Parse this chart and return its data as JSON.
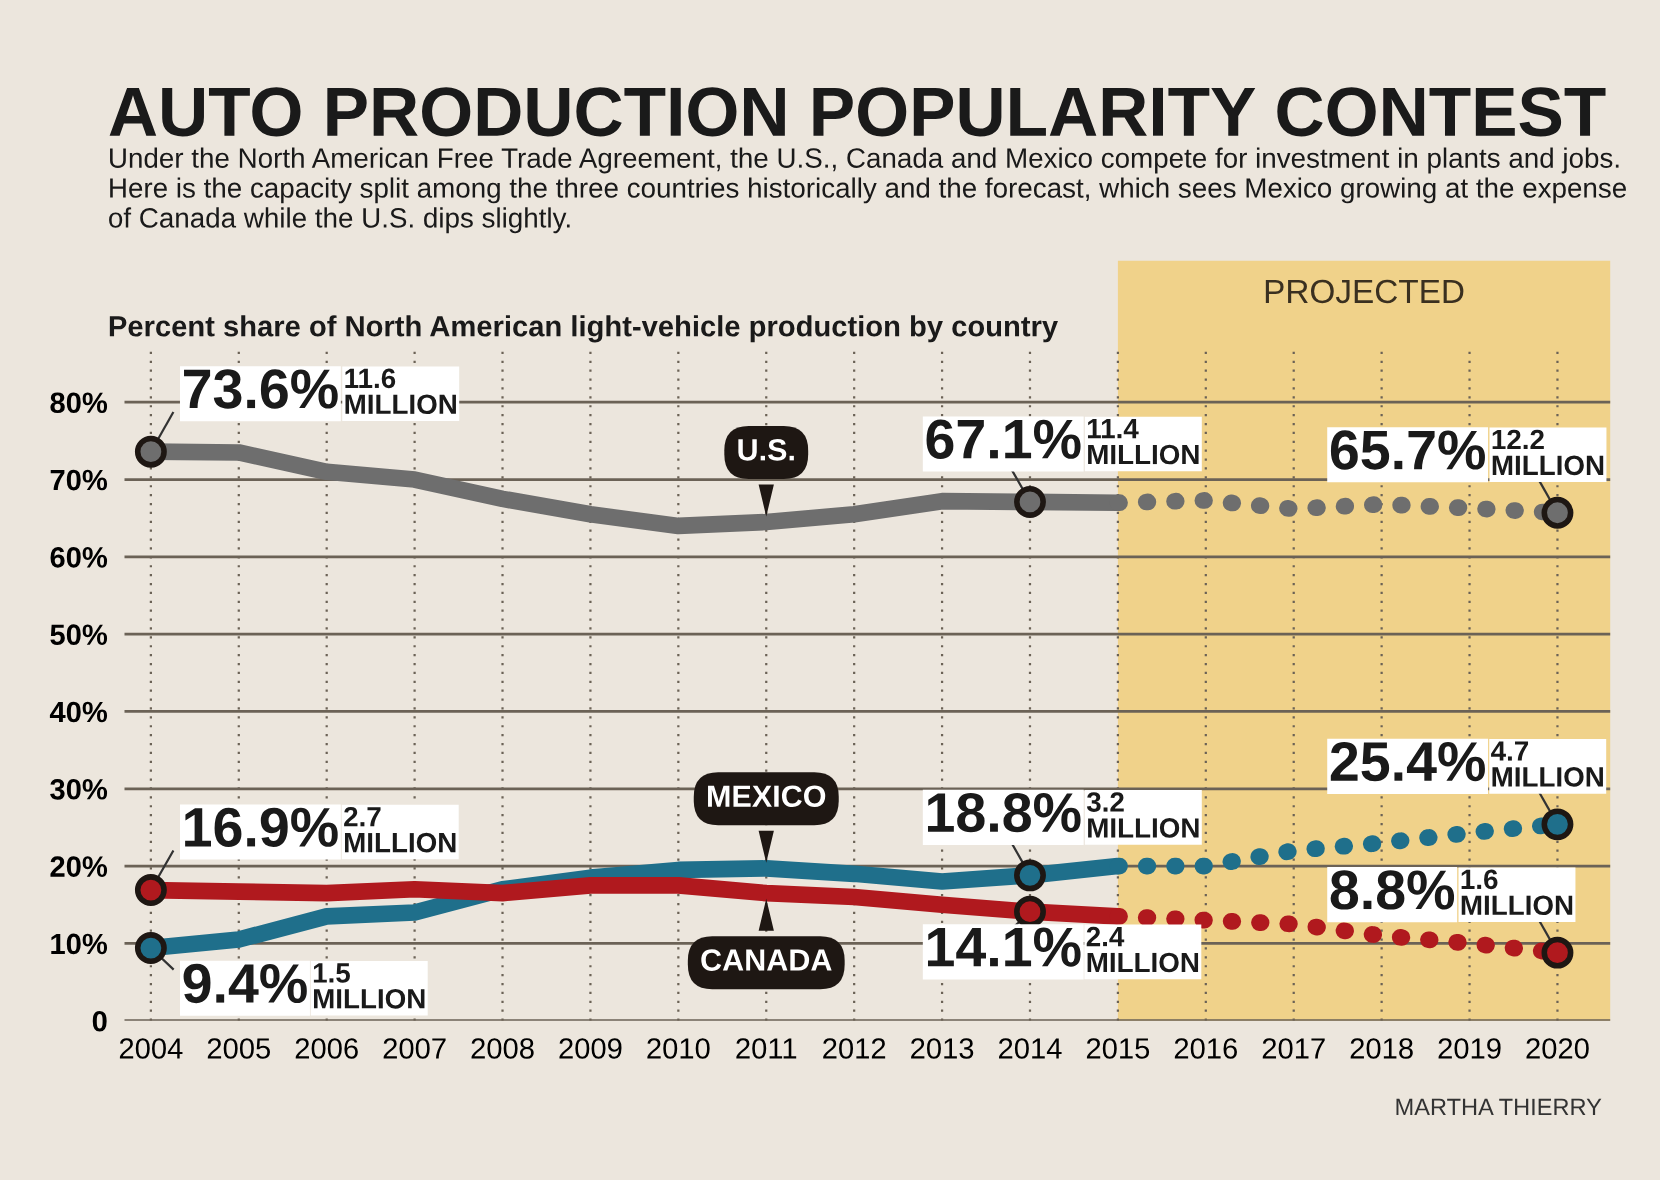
{
  "chart_data": {
    "type": "line",
    "title": "AUTO PRODUCTION POPULARITY CONTEST",
    "subtitle": "Under the North American Free Trade Agreement, the U.S., Canada and Mexico compete for investment in plants and jobs.  Here is the capacity split among the three countries historically and the forecast, which sees Mexico growing at the expense of Canada while the U.S. dips slightly.",
    "ylabel": "Percent share of North American light-vehicle production by country",
    "x": [
      2004,
      2005,
      2006,
      2007,
      2008,
      2009,
      2010,
      2011,
      2012,
      2013,
      2014,
      2015
    ],
    "series": [
      {
        "name": "U.S.",
        "color": "#6e6e6e",
        "line_style": "solid",
        "values": [
          73.6,
          73.5,
          71,
          70,
          67.5,
          65.5,
          64,
          64.5,
          65.5,
          67.2,
          67.1,
          67
        ]
      },
      {
        "color": "#6e6e6e",
        "line_style": "dotted",
        "x": [
          2015,
          2016,
          2017,
          2018,
          2019,
          2020
        ],
        "values": [
          67,
          67.3,
          66.2,
          66.8,
          66.3,
          65.7
        ]
      },
      {
        "name": "MEXICO",
        "color": "#1f6f8b",
        "line_style": "solid",
        "values": [
          9.4,
          10.5,
          13.5,
          14,
          17,
          18.5,
          19.5,
          19.7,
          19,
          18,
          18.8,
          20
        ]
      },
      {
        "color": "#1f6f8b",
        "line_style": "dotted",
        "x": [
          2015,
          2016,
          2017,
          2018,
          2019,
          2020
        ],
        "values": [
          20,
          20,
          22,
          23,
          24.3,
          25.4
        ]
      },
      {
        "name": "CANADA",
        "color": "#b0191e",
        "line_style": "solid",
        "values": [
          16.9,
          16.7,
          16.5,
          17,
          16.5,
          17.5,
          17.5,
          16.5,
          16,
          15,
          14.1,
          13.5
        ]
      },
      {
        "color": "#b0191e",
        "line_style": "dotted",
        "x": [
          2015,
          2016,
          2017,
          2018,
          2019,
          2020
        ],
        "values": [
          13.5,
          13,
          12.5,
          11,
          10,
          8.8
        ]
      }
    ],
    "xlim": [
      2003.7,
      2020.6
    ],
    "xticks": [
      2004,
      2005,
      2006,
      2007,
      2008,
      2009,
      2010,
      2011,
      2012,
      2013,
      2014,
      2015,
      2016,
      2017,
      2018,
      2019,
      2020
    ],
    "ylim": [
      0,
      87
    ],
    "yticks": [
      {
        "value": 0,
        "label": "0"
      },
      {
        "value": 10,
        "label": "10%"
      },
      {
        "value": 20,
        "label": "20%"
      },
      {
        "value": 30,
        "label": "30%"
      },
      {
        "value": 40,
        "label": "40%"
      },
      {
        "value": 50,
        "label": "50%"
      },
      {
        "value": 60,
        "label": "60%"
      },
      {
        "value": 70,
        "label": "70%"
      },
      {
        "value": 80,
        "label": "80%"
      }
    ],
    "grid": true,
    "bands": [
      {
        "axis": "x",
        "from": 2015,
        "to": 2020.6,
        "label": "PROJECTED",
        "color": "#f0d28a"
      }
    ],
    "annotations": [
      {
        "text": "73.6% 11.6 MILLION",
        "x": 2004,
        "y": 73.6
      },
      {
        "text": "67.1% 11.4 MILLION",
        "x": 2014,
        "y": 67.1
      },
      {
        "text": "65.7% 12.2 MILLION",
        "x": 2020,
        "y": 65.7
      },
      {
        "text": "16.9% 2.7 MILLION",
        "x": 2004,
        "y": 16.9
      },
      {
        "text": "9.4% 1.5 MILLION",
        "x": 2004,
        "y": 9.4
      },
      {
        "text": "18.8% 3.2 MILLION",
        "x": 2014,
        "y": 18.8
      },
      {
        "text": "14.1% 2.4 MILLION",
        "x": 2014,
        "y": 14.1
      },
      {
        "text": "25.4% 4.7 MILLION",
        "x": 2020,
        "y": 25.4
      },
      {
        "text": "8.8% 1.6 MILLION",
        "x": 2020,
        "y": 8.8
      },
      "MARTHA THIERRY"
    ]
  }
}
